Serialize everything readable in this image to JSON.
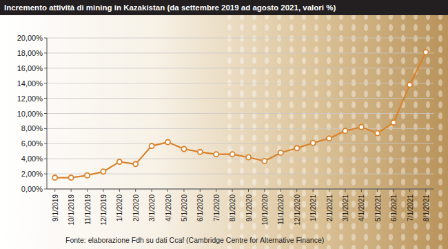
{
  "chart_data": {
    "type": "line",
    "title": "Incremento attività di mining in Kazakistan (da settembre 2019 ad agosto 2021, valori %)",
    "source": "Fonte: elaborazione Fdh su dati Ccaf (Cambridge Centre for Alternative Finance)",
    "categories": [
      "9/1/2019",
      "10/1/2019",
      "11/1/2019",
      "12/1/2019",
      "1/1/2020",
      "2/1/2020",
      "3/1/2020",
      "4/1/2020",
      "5/1/2020",
      "6/1/2020",
      "7/1/2020",
      "8/1/2020",
      "9/1/2020",
      "10/1/2020",
      "11/1/2020",
      "12/1/2020",
      "1/1/2021",
      "2/1/2021",
      "3/1/2021",
      "4/1/2021",
      "5/1/2021",
      "6/1/2021",
      "7/1/2021",
      "8/1/2021"
    ],
    "values": [
      1.5,
      1.5,
      1.8,
      2.3,
      3.6,
      3.3,
      5.7,
      6.2,
      5.3,
      4.9,
      4.6,
      4.6,
      4.2,
      3.7,
      4.8,
      5.4,
      6.1,
      6.7,
      7.7,
      8.2,
      7.4,
      8.8,
      13.8,
      18.1
    ],
    "color": "#d9822b",
    "marker": "circle",
    "ylim": [
      0,
      20
    ],
    "yticks": [
      {
        "value": 0,
        "label": "0,00%"
      },
      {
        "value": 2,
        "label": "2,00%"
      },
      {
        "value": 4,
        "label": "4,00%"
      },
      {
        "value": 6,
        "label": "6,00%"
      },
      {
        "value": 8,
        "label": "8,00%"
      },
      {
        "value": 10,
        "label": "10,00%"
      },
      {
        "value": 12,
        "label": "12,00%"
      },
      {
        "value": 14,
        "label": "14,00%"
      },
      {
        "value": 16,
        "label": "16,00%"
      },
      {
        "value": 18,
        "label": "18,00%"
      },
      {
        "value": 20,
        "label": "20,00%"
      }
    ],
    "grid": true
  }
}
